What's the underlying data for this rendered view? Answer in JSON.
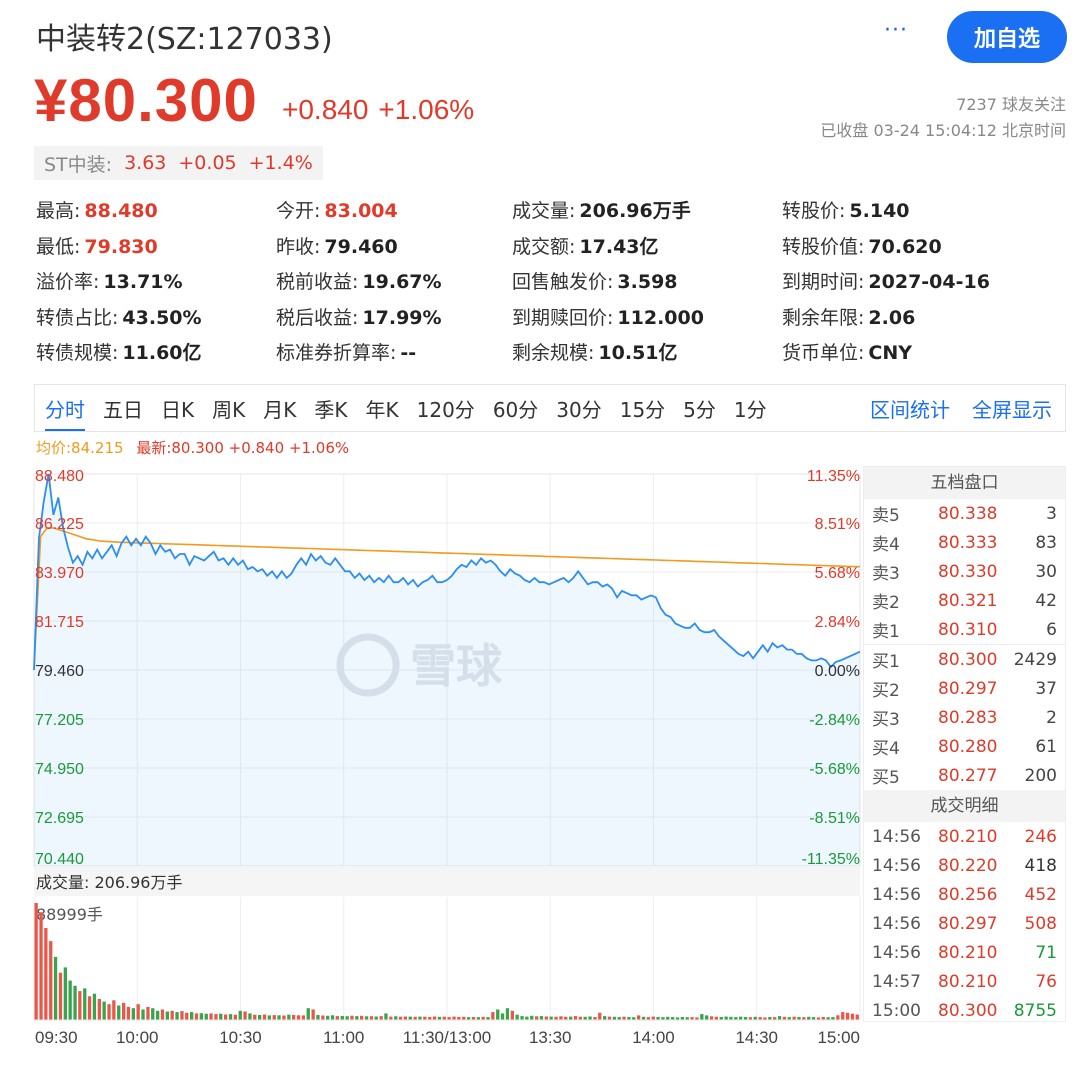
{
  "header": {
    "title": "中装转2(SZ:127033)",
    "more_label": "···",
    "add_button": "加自选",
    "price": "¥80.300",
    "change": "+0.840",
    "change_pct": "+1.06%",
    "followers": "7237 球友关注",
    "status": "已收盘 03-24 15:04:12 北京时间"
  },
  "underlying": {
    "label": "ST中装:",
    "price": "3.63",
    "change": "+0.05",
    "change_pct": "+1.4%"
  },
  "stats": [
    {
      "label": "最高:",
      "value": "88.480",
      "color": "red"
    },
    {
      "label": "今开:",
      "value": "83.004",
      "color": "red"
    },
    {
      "label": "成交量:",
      "value": "206.96万手",
      "color": "dark"
    },
    {
      "label": "转股价:",
      "value": "5.140",
      "color": "dark"
    },
    {
      "label": "最低:",
      "value": "79.830",
      "color": "red"
    },
    {
      "label": "昨收:",
      "value": "79.460",
      "color": "dark"
    },
    {
      "label": "成交额:",
      "value": "17.43亿",
      "color": "dark"
    },
    {
      "label": "转股价值:",
      "value": "70.620",
      "color": "dark"
    },
    {
      "label": "溢价率:",
      "value": "13.71%",
      "color": "dark"
    },
    {
      "label": "税前收益:",
      "value": "19.67%",
      "color": "dark"
    },
    {
      "label": "回售触发价:",
      "value": "3.598",
      "color": "dark"
    },
    {
      "label": "到期时间:",
      "value": "2027-04-16",
      "color": "dark"
    },
    {
      "label": "转债占比:",
      "value": "43.50%",
      "color": "dark"
    },
    {
      "label": "税后收益:",
      "value": "17.99%",
      "color": "dark"
    },
    {
      "label": "到期赎回价:",
      "value": "112.000",
      "color": "dark"
    },
    {
      "label": "剩余年限:",
      "value": "2.06",
      "color": "dark"
    },
    {
      "label": "转债规模:",
      "value": "11.60亿",
      "color": "dark"
    },
    {
      "label": "标准券折算率:",
      "value": "--",
      "color": "dark"
    },
    {
      "label": "剩余规模:",
      "value": "10.51亿",
      "color": "dark"
    },
    {
      "label": "货币单位:",
      "value": "CNY",
      "color": "dark"
    }
  ],
  "tabs": [
    "分时",
    "五日",
    "日K",
    "周K",
    "月K",
    "季K",
    "年K",
    "120分",
    "60分",
    "30分",
    "15分",
    "5分",
    "1分"
  ],
  "active_tab": "分时",
  "tab_actions": [
    "区间统计",
    "全屏显示"
  ],
  "legend": {
    "avg": "均价:84.215",
    "last": "最新:80.300 +0.840 +1.06%"
  },
  "watermark": "雪球",
  "volume_label": "成交量: 206.96万手",
  "volume_max_label": "88999手",
  "chart_data": {
    "type": "line",
    "price_ticks": [
      "88.480",
      "86.225",
      "83.970",
      "81.715",
      "79.460",
      "77.205",
      "74.950",
      "72.695",
      "70.440"
    ],
    "pct_ticks": [
      "11.35%",
      "8.51%",
      "5.68%",
      "2.84%",
      "0.00%",
      "-2.84%",
      "-5.68%",
      "-8.51%",
      "-11.35%"
    ],
    "ylim": [
      70.44,
      88.48
    ],
    "prev_close": 79.46,
    "time_ticks": [
      "09:30",
      "10:00",
      "10:30",
      "11:00",
      "11:30/13:00",
      "13:30",
      "14:00",
      "14:30",
      "15:00"
    ],
    "series": [
      {
        "name": "最新",
        "color": "#2b8ef0",
        "values": [
          79.46,
          85.5,
          87.2,
          88.48,
          86.6,
          87.4,
          86.0,
          85.1,
          84.4,
          84.7,
          84.3,
          84.9,
          84.6,
          85.0,
          84.6,
          84.9,
          85.2,
          84.7,
          85.3,
          85.6,
          85.2,
          85.5,
          85.2,
          85.6,
          85.3,
          84.8,
          85.2,
          84.9,
          85.0,
          84.6,
          84.8,
          84.8,
          84.3,
          84.7,
          84.6,
          84.5,
          84.7,
          84.9,
          84.5,
          84.6,
          84.3,
          84.6,
          84.3,
          84.5,
          84.1,
          84.2,
          84.0,
          84.1,
          83.8,
          84.0,
          83.7,
          84.0,
          83.7,
          83.9,
          84.3,
          84.6,
          84.3,
          84.8,
          84.5,
          84.7,
          84.4,
          84.3,
          84.6,
          84.3,
          84.0,
          84.0,
          83.7,
          83.9,
          83.6,
          83.8,
          83.5,
          83.7,
          83.5,
          83.8,
          83.5,
          83.5,
          83.7,
          83.4,
          83.6,
          83.3,
          83.5,
          83.6,
          83.8,
          83.5,
          83.5,
          83.6,
          83.8,
          84.1,
          84.3,
          84.2,
          84.5,
          84.3,
          84.6,
          84.4,
          84.5,
          84.3,
          84.0,
          83.8,
          84.1,
          83.9,
          83.8,
          83.6,
          83.5,
          83.7,
          83.5,
          83.5,
          83.4,
          83.5,
          83.6,
          83.7,
          83.5,
          83.7,
          84.0,
          83.7,
          83.4,
          83.5,
          83.5,
          83.3,
          83.4,
          83.2,
          82.8,
          83.1,
          83.0,
          82.9,
          82.9,
          82.7,
          82.8,
          82.9,
          82.8,
          82.3,
          82.0,
          81.9,
          81.6,
          81.5,
          81.4,
          81.4,
          81.6,
          81.3,
          81.2,
          81.2,
          81.3,
          81.0,
          80.8,
          80.6,
          80.4,
          80.2,
          80.1,
          80.3,
          80.0,
          80.3,
          80.6,
          80.3,
          80.7,
          80.5,
          80.6,
          80.4,
          80.4,
          80.2,
          80.2,
          80.0,
          79.9,
          79.9,
          80.0,
          79.9,
          79.6,
          79.83,
          79.9,
          80.0,
          80.1,
          80.2,
          80.3
        ]
      },
      {
        "name": "均价",
        "color": "#f19a1e",
        "values": [
          79.46,
          85.6,
          86.0,
          86.0,
          85.9,
          85.8,
          85.7,
          85.6,
          85.5,
          85.45,
          85.4,
          85.38,
          85.36,
          85.34,
          85.33,
          85.32,
          85.31,
          85.3,
          85.29,
          85.28,
          85.27,
          85.26,
          85.25,
          85.24,
          85.23,
          85.22,
          85.21,
          85.2,
          85.19,
          85.18,
          85.17,
          85.16,
          85.15,
          85.14,
          85.13,
          85.12,
          85.11,
          85.1,
          85.09,
          85.08,
          85.07,
          85.06,
          85.05,
          85.04,
          85.03,
          85.02,
          85.01,
          85.0,
          84.99,
          84.98,
          84.97,
          84.96,
          84.95,
          84.94,
          84.93,
          84.92,
          84.91,
          84.9,
          84.89,
          84.88,
          84.87,
          84.86,
          84.85,
          84.84,
          84.83,
          84.82,
          84.81,
          84.8,
          84.79,
          84.78,
          84.77,
          84.76,
          84.75,
          84.74,
          84.73,
          84.72,
          84.71,
          84.7,
          84.69,
          84.68,
          84.67,
          84.66,
          84.65,
          84.64,
          84.63,
          84.62,
          84.61,
          84.6,
          84.59,
          84.58,
          84.57,
          84.56,
          84.55,
          84.54,
          84.53,
          84.52,
          84.51,
          84.5,
          84.49,
          84.48,
          84.47,
          84.46,
          84.45,
          84.44,
          84.43,
          84.42,
          84.41,
          84.4,
          84.39,
          84.38,
          84.37,
          84.36,
          84.35,
          84.34,
          84.33,
          84.32,
          84.31,
          84.3,
          84.29,
          84.28,
          84.27,
          84.26,
          84.25,
          84.24,
          84.23,
          84.22,
          84.215
        ]
      }
    ],
    "volume": [
      88999,
      82000,
      70000,
      60000,
      48000,
      36000,
      40000,
      30000,
      26000,
      22000,
      24000,
      18000,
      20000,
      16000,
      14000,
      12000,
      15000,
      11000,
      13000,
      10000,
      9000,
      12000,
      8000,
      10000,
      9000,
      7000,
      8000,
      6500,
      7000,
      6000,
      6800,
      5500,
      6000,
      5000,
      5200,
      4800,
      5000,
      4500,
      4800,
      4200,
      4500,
      4000,
      7000,
      6500,
      5000,
      4000,
      3800,
      4200,
      3500,
      3700,
      3600,
      3400,
      4000,
      3800,
      3600,
      3500,
      9000,
      8000,
      3800,
      3400,
      3200,
      3600,
      3000,
      3100,
      2900,
      3300,
      3000,
      3200,
      2800,
      2900,
      2700,
      3000,
      5000,
      2600,
      2800,
      2500,
      2700,
      2600,
      2400,
      2600,
      2500,
      2300,
      2700,
      2400,
      2500,
      2200,
      2600,
      2300,
      2400,
      2200,
      2300,
      2100,
      2400,
      2200,
      6000,
      8000,
      5000,
      9000,
      7000,
      4000,
      3000,
      2600,
      3200,
      2800,
      3000,
      2700,
      2600,
      2500,
      2800,
      2400,
      2600,
      3000,
      2500,
      2400,
      2700,
      2300,
      5500,
      3000,
      2600,
      2400,
      2200,
      2500,
      2300,
      2100,
      3500,
      2400,
      2200,
      2600,
      2300,
      2100,
      2400,
      2200,
      2000,
      2300,
      2100,
      2200,
      2000,
      4500,
      3500,
      2800,
      2500,
      2300,
      2600,
      2400,
      2200,
      2500,
      2300,
      2100,
      2400,
      2200,
      2000,
      2300,
      2100,
      3000,
      2400,
      2200,
      2500,
      2300,
      2100,
      2400,
      2200,
      2000,
      2300,
      2100,
      2200,
      3600,
      6000,
      5500,
      4800,
      4200
    ]
  },
  "order_book": {
    "title": "五档盘口",
    "asks": [
      {
        "label": "卖5",
        "price": "80.338",
        "qty": "3"
      },
      {
        "label": "卖4",
        "price": "80.333",
        "qty": "83"
      },
      {
        "label": "卖3",
        "price": "80.330",
        "qty": "30"
      },
      {
        "label": "卖2",
        "price": "80.321",
        "qty": "42"
      },
      {
        "label": "卖1",
        "price": "80.310",
        "qty": "6"
      }
    ],
    "bids": [
      {
        "label": "买1",
        "price": "80.300",
        "qty": "2429"
      },
      {
        "label": "买2",
        "price": "80.297",
        "qty": "37"
      },
      {
        "label": "买3",
        "price": "80.283",
        "qty": "2"
      },
      {
        "label": "买4",
        "price": "80.280",
        "qty": "61"
      },
      {
        "label": "买5",
        "price": "80.277",
        "qty": "200"
      }
    ]
  },
  "deals": {
    "title": "成交明细",
    "rows": [
      {
        "time": "14:56",
        "price": "80.210",
        "qty": "246",
        "color": "red"
      },
      {
        "time": "14:56",
        "price": "80.220",
        "qty": "418",
        "color": "dark"
      },
      {
        "time": "14:56",
        "price": "80.256",
        "qty": "452",
        "color": "red"
      },
      {
        "time": "14:56",
        "price": "80.297",
        "qty": "508",
        "color": "red"
      },
      {
        "time": "14:56",
        "price": "80.210",
        "qty": "71",
        "color": "green"
      },
      {
        "time": "14:57",
        "price": "80.210",
        "qty": "76",
        "color": "red"
      },
      {
        "time": "15:00",
        "price": "80.300",
        "qty": "8755",
        "color": "green"
      }
    ]
  }
}
